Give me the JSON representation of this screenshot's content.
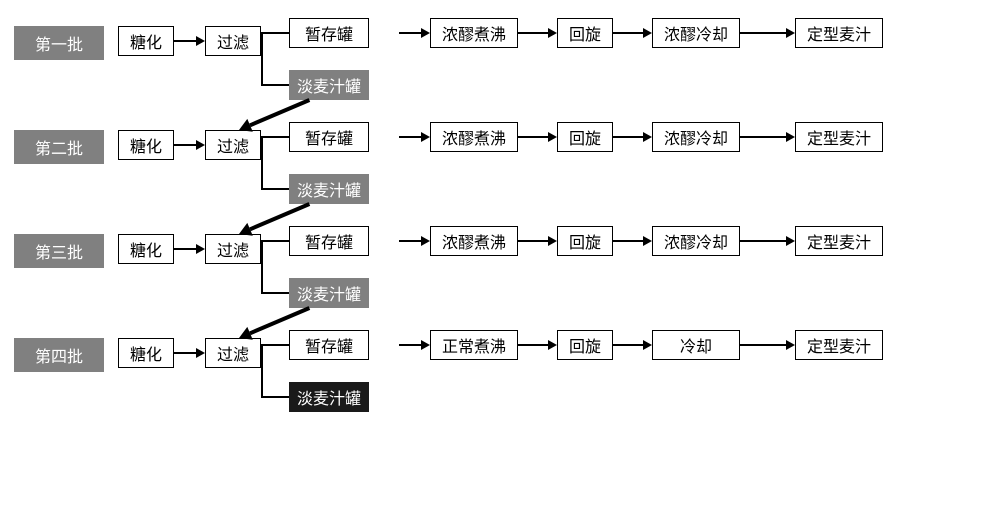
{
  "colors": {
    "batch_bg": "#808080",
    "light_tank_bg": "#808080",
    "light_tank_dark_bg": "#1a1a1a",
    "box_border": "#000000",
    "arrow": "#000000",
    "bg": "#ffffff",
    "text_dark": "#000000",
    "text_light": "#ffffff"
  },
  "layout": {
    "arrow_short": 22,
    "arrow_med": 30,
    "arrow_long": 46
  },
  "labels": {
    "mash": "糖化",
    "filter": "过滤",
    "tank": "暂存罐",
    "light_tank": "淡麦汁罐",
    "boil_thick": "浓醪煮沸",
    "boil_normal": "正常煮沸",
    "spin": "回旋",
    "cool_thick": "浓醪冷却",
    "cool_normal": "冷却",
    "final": "定型麦汁"
  },
  "rows": [
    {
      "batch": "第一批",
      "boil": "boil_thick",
      "cool": "cool_thick",
      "light_dark": false,
      "diag": true
    },
    {
      "batch": "第二批",
      "boil": "boil_thick",
      "cool": "cool_thick",
      "light_dark": false,
      "diag": true
    },
    {
      "batch": "第三批",
      "boil": "boil_thick",
      "cool": "cool_thick",
      "light_dark": false,
      "diag": true
    },
    {
      "batch": "第四批",
      "boil": "boil_normal",
      "cool": "cool_normal",
      "light_dark": true,
      "diag": false
    }
  ]
}
